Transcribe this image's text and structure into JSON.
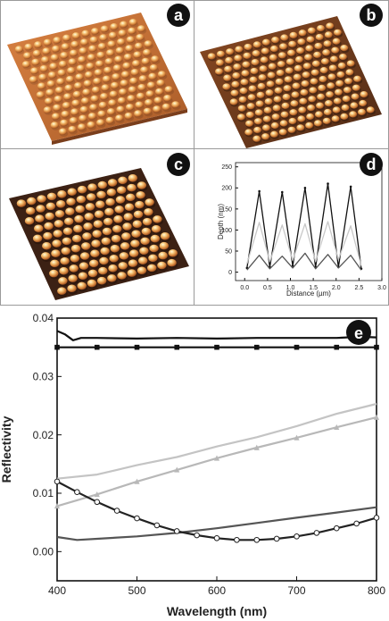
{
  "panels": {
    "a": {
      "letter": "a",
      "kind": "afm-surface",
      "contrast": "low"
    },
    "b": {
      "letter": "b",
      "kind": "afm-surface",
      "contrast": "medium"
    },
    "c": {
      "letter": "c",
      "kind": "afm-surface",
      "contrast": "high"
    }
  },
  "afm_colors": {
    "base": "#c8652f",
    "peak": "#fff3c0",
    "hole": "#3a2418"
  },
  "chart_data": [
    {
      "panel_letter": "d",
      "type": "line",
      "xlabel": "Distance (µm)",
      "ylabel": "Depth (nm)",
      "xlim": [
        -0.2,
        3.0
      ],
      "ylim": [
        -20,
        260
      ],
      "xticks": [
        0.0,
        0.5,
        1.0,
        1.5,
        2.0,
        2.5,
        3.0
      ],
      "yticks": [
        0,
        50,
        100,
        150,
        200,
        250
      ],
      "grid": false,
      "series": [
        {
          "color": "#111111",
          "marker": "dot",
          "x": [
            0.05,
            0.32,
            0.55,
            0.82,
            1.05,
            1.32,
            1.55,
            1.82,
            2.05,
            2.32,
            2.55
          ],
          "y": [
            10,
            192,
            12,
            190,
            15,
            200,
            12,
            210,
            12,
            203,
            8
          ]
        },
        {
          "color": "#c8c8c8",
          "marker": "none",
          "x": [
            0.05,
            0.32,
            0.55,
            0.82,
            1.05,
            1.32,
            1.55,
            1.82,
            2.05,
            2.32,
            2.55
          ],
          "y": [
            20,
            118,
            25,
            112,
            28,
            115,
            25,
            120,
            30,
            110,
            15
          ]
        },
        {
          "color": "#555555",
          "marker": "none",
          "x": [
            0.05,
            0.32,
            0.55,
            0.82,
            1.05,
            1.32,
            1.55,
            1.82,
            2.05,
            2.32,
            2.55
          ],
          "y": [
            5,
            40,
            8,
            38,
            10,
            45,
            8,
            42,
            10,
            40,
            5
          ]
        }
      ]
    },
    {
      "panel_letter": "e",
      "type": "line",
      "xlabel": "Wavelength (nm)",
      "ylabel": "Reflectivity",
      "xlim": [
        400,
        800
      ],
      "ylim": [
        -0.005,
        0.04
      ],
      "xticks": [
        400,
        500,
        600,
        700,
        800
      ],
      "yticks": [
        0.0,
        0.01,
        0.02,
        0.03,
        0.04
      ],
      "grid": false,
      "series": [
        {
          "color": "#111111",
          "marker": "none",
          "x": [
            400,
            410,
            420,
            430,
            450,
            500,
            550,
            600,
            650,
            700,
            750,
            780,
            800
          ],
          "y": [
            0.0378,
            0.0372,
            0.0362,
            0.0366,
            0.0366,
            0.0365,
            0.0366,
            0.0365,
            0.0366,
            0.0366,
            0.0366,
            0.0368,
            0.0367
          ]
        },
        {
          "color": "#111111",
          "marker": "square",
          "x": [
            400,
            450,
            500,
            550,
            600,
            650,
            700,
            750,
            800
          ],
          "y": [
            0.035,
            0.035,
            0.035,
            0.035,
            0.035,
            0.035,
            0.035,
            0.035,
            0.035
          ]
        },
        {
          "color": "#c4c4c4",
          "marker": "none",
          "x": [
            400,
            450,
            500,
            550,
            600,
            650,
            700,
            750,
            800
          ],
          "y": [
            0.0125,
            0.0132,
            0.0148,
            0.0162,
            0.018,
            0.0196,
            0.0215,
            0.0236,
            0.0253
          ]
        },
        {
          "color": "#b8b8b8",
          "marker": "triangle",
          "x": [
            400,
            450,
            500,
            550,
            600,
            650,
            700,
            750,
            800
          ],
          "y": [
            0.0078,
            0.0098,
            0.012,
            0.014,
            0.016,
            0.0178,
            0.0195,
            0.0213,
            0.023
          ]
        },
        {
          "color": "#555555",
          "marker": "none",
          "x": [
            400,
            425,
            450,
            500,
            550,
            600,
            650,
            700,
            750,
            800
          ],
          "y": [
            0.0025,
            0.002,
            0.0022,
            0.0026,
            0.0032,
            0.004,
            0.0049,
            0.0058,
            0.0067,
            0.0076
          ]
        },
        {
          "color": "#222222",
          "marker": "circle",
          "x": [
            400,
            425,
            450,
            475,
            500,
            525,
            550,
            575,
            600,
            625,
            650,
            675,
            700,
            725,
            750,
            775,
            800
          ],
          "y": [
            0.012,
            0.0102,
            0.0085,
            0.007,
            0.0057,
            0.0045,
            0.0035,
            0.0028,
            0.0023,
            0.002,
            0.002,
            0.0022,
            0.0026,
            0.0032,
            0.004,
            0.0048,
            0.0058
          ]
        }
      ]
    }
  ]
}
